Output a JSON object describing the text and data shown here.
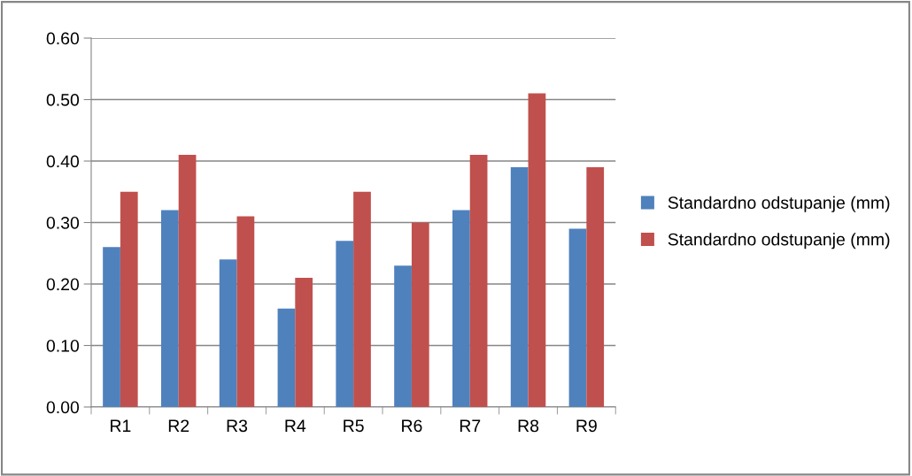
{
  "chart_data": {
    "type": "bar",
    "categories": [
      "R1",
      "R2",
      "R3",
      "R4",
      "R5",
      "R6",
      "R7",
      "R8",
      "R9"
    ],
    "series": [
      {
        "name": "Standardno odstupanje (mm)",
        "color": "#4f81bd",
        "values": [
          0.26,
          0.32,
          0.24,
          0.16,
          0.27,
          0.23,
          0.32,
          0.39,
          0.29
        ]
      },
      {
        "name": "Standardno odstupanje (mm)",
        "color": "#c0504d",
        "values": [
          0.35,
          0.41,
          0.31,
          0.21,
          0.35,
          0.3,
          0.41,
          0.51,
          0.39
        ]
      }
    ],
    "ylim": [
      0,
      0.6
    ],
    "yticks": [
      {
        "value": 0,
        "label": "0.00"
      },
      {
        "value": 0.1,
        "label": "0.10"
      },
      {
        "value": 0.2,
        "label": "0.20"
      },
      {
        "value": 0.3,
        "label": "0.30"
      },
      {
        "value": 0.4,
        "label": "0.40"
      },
      {
        "value": 0.5,
        "label": "0.50"
      },
      {
        "value": 0.6,
        "label": "0.60"
      }
    ],
    "grid": "y",
    "legend": "right"
  }
}
